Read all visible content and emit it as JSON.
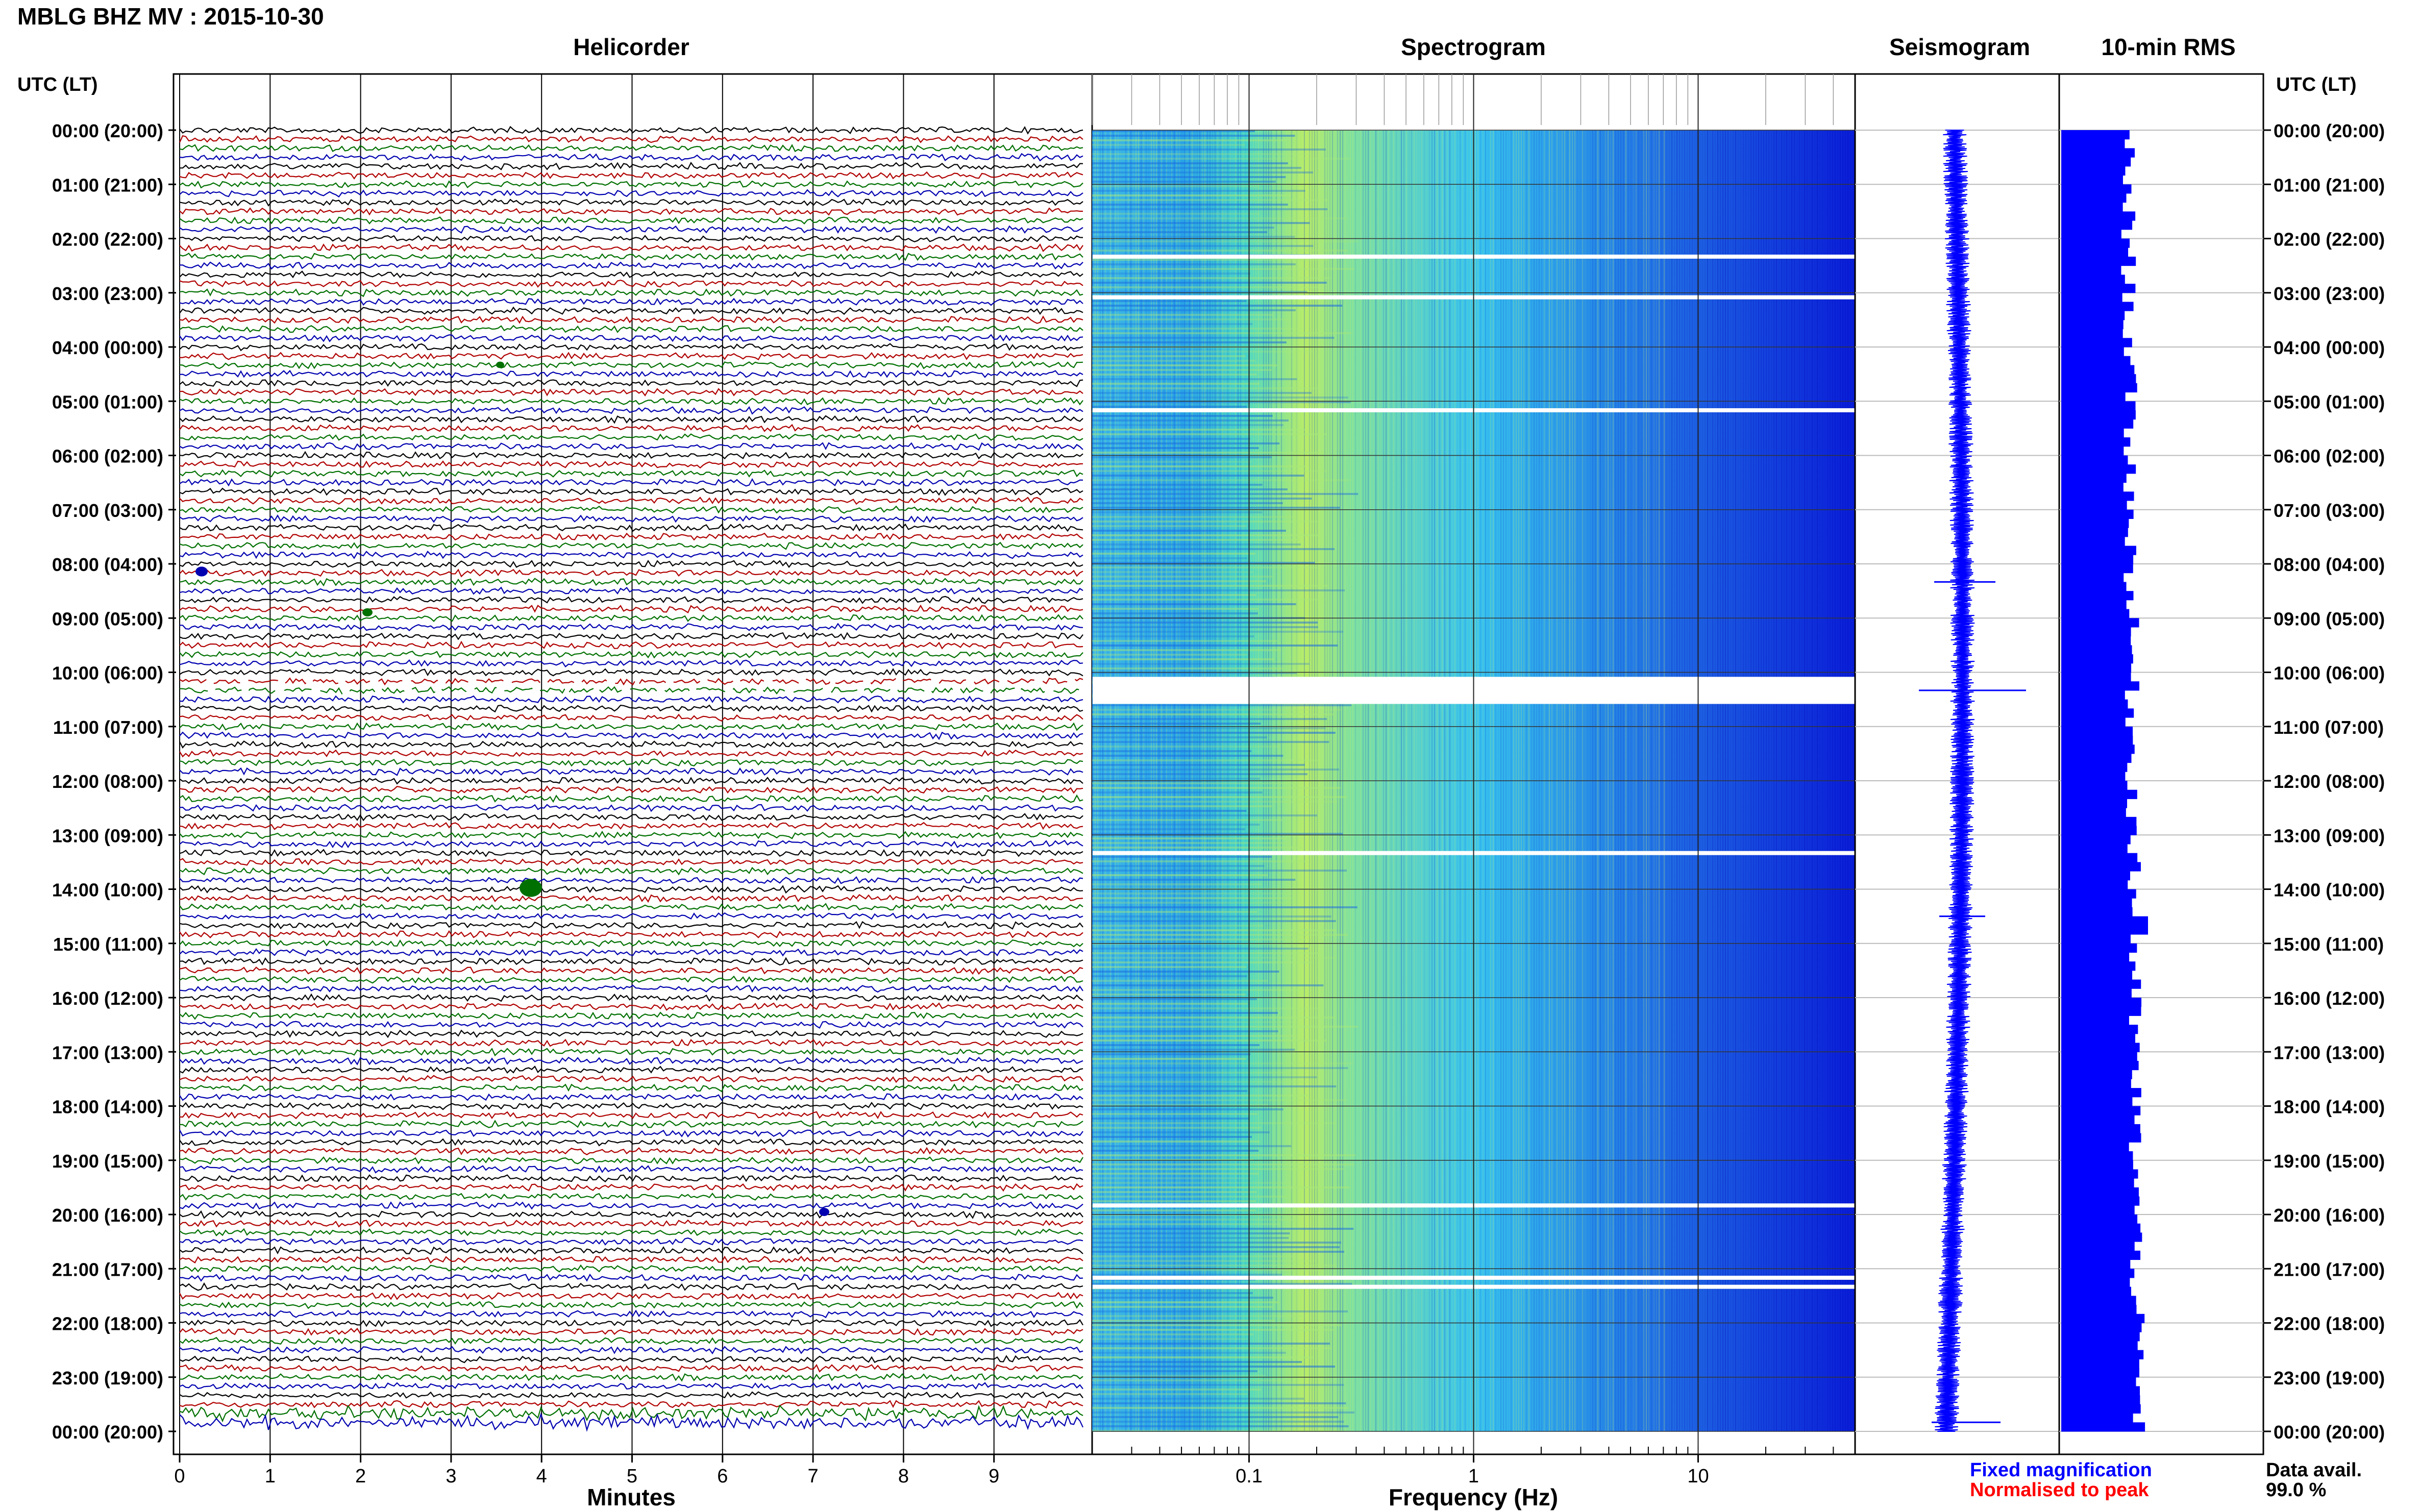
{
  "title": "MBLG BHZ MV : 2015-10-30",
  "panels": {
    "helicorder": "Helicorder",
    "spectrogram": "Spectrogram",
    "seismogram": "Seismogram",
    "rms": "10-min RMS"
  },
  "axis": {
    "time_header_left": "UTC (LT)",
    "time_header_right": "UTC (LT)",
    "minutes_label": "Minutes",
    "frequency_label": "Frequency (Hz)"
  },
  "time_labels": [
    "00:00 (20:00)",
    "01:00 (21:00)",
    "02:00 (22:00)",
    "03:00 (23:00)",
    "04:00 (00:00)",
    "05:00 (01:00)",
    "06:00 (02:00)",
    "07:00 (03:00)",
    "08:00 (04:00)",
    "09:00 (05:00)",
    "10:00 (06:00)",
    "11:00 (07:00)",
    "12:00 (08:00)",
    "13:00 (09:00)",
    "14:00 (10:00)",
    "15:00 (11:00)",
    "16:00 (12:00)",
    "17:00 (13:00)",
    "18:00 (14:00)",
    "19:00 (15:00)",
    "20:00 (16:00)",
    "21:00 (17:00)",
    "22:00 (18:00)",
    "23:00 (19:00)",
    "00:00 (20:00)"
  ],
  "minute_ticks": [
    "0",
    "1",
    "2",
    "3",
    "4",
    "5",
    "6",
    "7",
    "8",
    "9"
  ],
  "frequency_ticks": [
    "0.1",
    "1",
    "10"
  ],
  "legend": {
    "fixed": "Fixed magnification",
    "normalised": "Normalised to peak",
    "fixed_color": "#0000ff",
    "normalised_color": "#ff0000"
  },
  "availability": {
    "label": "Data avail.",
    "value": "99.0 %"
  },
  "colors": {
    "trace_cycle": [
      "#000000",
      "#b00000",
      "#007000",
      "#0000b0"
    ],
    "rms_fill": "#0000ff",
    "spectrogram_low": "#0b1fe0",
    "spectrogram_mid": "#3fc8f0",
    "spectrogram_high": "#d8f050"
  },
  "chart_data": {
    "type": "helicorder-spectrogram",
    "date": "2015-10-30",
    "station": "MBLG",
    "channel": "BHZ",
    "network": "MV",
    "time_range_utc": [
      "00:00",
      "24:00"
    ],
    "trace_minutes_per_line": 10,
    "minutes_range": [
      0,
      10
    ],
    "frequency_range_hz": [
      0.02,
      50
    ],
    "frequency_scale": "log",
    "data_gaps_utc": [
      "02:20",
      "03:05",
      "05:10",
      "10:05-10:35",
      "13:20",
      "19:50",
      "21:10",
      "21:20"
    ],
    "rms_spike_utc": "14:30",
    "availability_percent": 99.0
  }
}
